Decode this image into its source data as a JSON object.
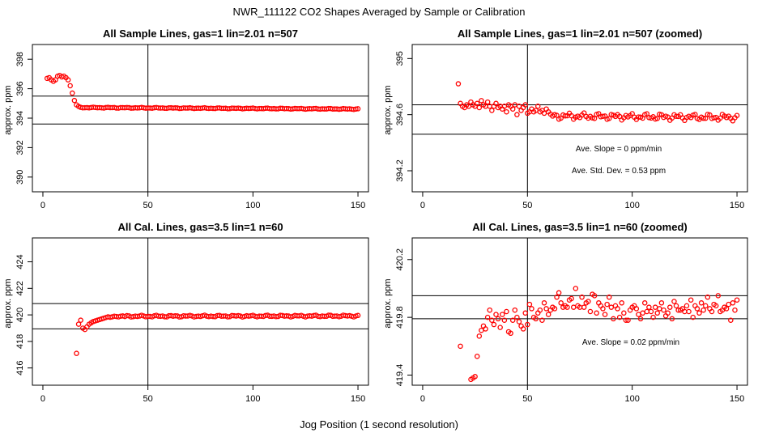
{
  "figure": {
    "title": "NWR_111122  CO2 Shapes Averaged by Sample or Calibration",
    "xlabel": "Jog Position (1 second resolution)"
  },
  "chart_data": [
    {
      "type": "scatter",
      "title": "All Sample Lines, gas=1 lin=2.01 n=507",
      "xlabel": "",
      "ylabel": "approx. ppm",
      "xlim": [
        -5,
        155
      ],
      "ylim": [
        389,
        399
      ],
      "x_ticks": [
        0,
        50,
        100,
        150
      ],
      "y_ticks": [
        390,
        392,
        394,
        396,
        398
      ],
      "vline_x": 50,
      "hlines": [
        395.5,
        393.6
      ],
      "series": [
        {
          "color": "#ff0000",
          "points": [
            [
              2,
              396.7
            ],
            [
              3,
              396.75
            ],
            [
              4,
              396.6
            ],
            [
              5,
              396.5
            ],
            [
              6,
              396.6
            ],
            [
              7,
              396.85
            ],
            [
              8,
              396.9
            ],
            [
              9,
              396.8
            ],
            [
              10,
              396.85
            ],
            [
              11,
              396.75
            ],
            [
              12,
              396.6
            ],
            [
              13,
              396.2
            ],
            [
              14,
              395.7
            ],
            [
              15,
              395.2
            ],
            [
              16,
              394.9
            ],
            [
              17,
              394.8
            ]
          ],
          "tail": {
            "from": 18,
            "to": 150,
            "base": 394.72,
            "end": 394.62,
            "amp": 0.03
          }
        }
      ],
      "annotations": []
    },
    {
      "type": "scatter",
      "title": "All Sample Lines, gas=1 lin=2.01 n=507 (zoomed)",
      "xlabel": "",
      "ylabel": "approx. ppm",
      "xlim": [
        -5,
        155
      ],
      "ylim": [
        394.05,
        395.1
      ],
      "x_ticks": [
        0,
        50,
        100,
        150
      ],
      "y_ticks": [
        394.2,
        394.6,
        395.0
      ],
      "vline_x": 50,
      "hlines": [
        394.67,
        394.46
      ],
      "series": [
        {
          "color": "#ff0000",
          "points": [
            [
              17,
              394.82
            ],
            [
              18,
              394.68
            ],
            [
              19,
              394.66
            ],
            [
              20,
              394.65
            ],
            [
              21,
              394.67
            ],
            [
              22,
              394.66
            ],
            [
              23,
              394.69
            ],
            [
              24,
              394.67
            ],
            [
              25,
              394.66
            ],
            [
              26,
              394.68
            ],
            [
              27,
              394.65
            ],
            [
              28,
              394.7
            ],
            [
              29,
              394.67
            ],
            [
              30,
              394.66
            ],
            [
              31,
              394.69
            ],
            [
              32,
              394.66
            ],
            [
              33,
              394.63
            ],
            [
              34,
              394.66
            ],
            [
              35,
              394.68
            ],
            [
              36,
              394.65
            ],
            [
              37,
              394.66
            ],
            [
              38,
              394.64
            ],
            [
              39,
              394.66
            ],
            [
              40,
              394.62
            ],
            [
              41,
              394.67
            ],
            [
              42,
              394.66
            ],
            [
              43,
              394.64
            ],
            [
              44,
              394.67
            ],
            [
              45,
              394.6
            ],
            [
              46,
              394.66
            ],
            [
              47,
              394.63
            ],
            [
              48,
              394.65
            ],
            [
              49,
              394.67
            ],
            [
              50,
              394.61
            ],
            [
              51,
              394.62
            ],
            [
              52,
              394.64
            ],
            [
              53,
              394.62
            ],
            [
              54,
              394.63
            ],
            [
              55,
              394.66
            ],
            [
              56,
              394.62
            ],
            [
              57,
              394.63
            ],
            [
              58,
              394.61
            ],
            [
              59,
              394.64
            ],
            [
              60,
              394.62
            ]
          ],
          "tail": {
            "from": 61,
            "to": 150,
            "base": 394.59,
            "end": 394.58,
            "amp": 0.025
          }
        }
      ],
      "annotations": [
        "Ave. Slope =  0  ppm/min",
        "Ave. Std. Dev. =  0.53  ppm"
      ]
    },
    {
      "type": "scatter",
      "title": "All Cal. Lines, gas=3.5 lin=1 n=60",
      "xlabel": "",
      "ylabel": "approx. ppm",
      "xlim": [
        -5,
        155
      ],
      "ylim": [
        414.7,
        425.8
      ],
      "x_ticks": [
        0,
        50,
        100,
        150
      ],
      "y_ticks": [
        416,
        418,
        420,
        422,
        424
      ],
      "vline_x": 50,
      "hlines": [
        420.85,
        418.95
      ],
      "series": [
        {
          "color": "#ff0000",
          "points": [
            [
              16,
              417.1
            ],
            [
              17,
              419.3
            ],
            [
              18,
              419.6
            ],
            [
              19,
              419.0
            ],
            [
              20,
              418.9
            ],
            [
              21,
              419.1
            ],
            [
              22,
              419.3
            ],
            [
              23,
              419.4
            ],
            [
              24,
              419.5
            ],
            [
              25,
              419.55
            ],
            [
              26,
              419.6
            ],
            [
              27,
              419.65
            ],
            [
              28,
              419.7
            ],
            [
              29,
              419.75
            ],
            [
              30,
              419.8
            ],
            [
              31,
              419.85
            ],
            [
              32,
              419.82
            ],
            [
              33,
              419.85
            ],
            [
              34,
              419.9
            ],
            [
              35,
              419.88
            ],
            [
              36,
              419.85
            ],
            [
              37,
              419.9
            ],
            [
              38,
              419.92
            ],
            [
              39,
              419.88
            ]
          ],
          "tail": {
            "from": 40,
            "to": 150,
            "base": 419.9,
            "end": 419.92,
            "amp": 0.07
          }
        }
      ],
      "annotations": []
    },
    {
      "type": "scatter",
      "title": "All Cal. Lines, gas=3.5 lin=1 n=60 (zoomed)",
      "xlabel": "",
      "ylabel": "approx. ppm",
      "xlim": [
        -5,
        155
      ],
      "ylim": [
        419.33,
        420.35
      ],
      "x_ticks": [
        0,
        50,
        100,
        150
      ],
      "y_ticks": [
        419.4,
        419.8,
        420.2
      ],
      "vline_x": 50,
      "hlines": [
        419.95,
        419.79
      ],
      "series": [
        {
          "color": "#ff0000",
          "points": [
            [
              18,
              419.6
            ],
            [
              23,
              419.37
            ],
            [
              24,
              419.38
            ],
            [
              25,
              419.39
            ],
            [
              26,
              419.53
            ],
            [
              27,
              419.67
            ],
            [
              28,
              419.71
            ],
            [
              29,
              419.74
            ],
            [
              30,
              419.72
            ],
            [
              31,
              419.8
            ],
            [
              32,
              419.85
            ],
            [
              33,
              419.78
            ],
            [
              34,
              419.75
            ],
            [
              35,
              419.82
            ],
            [
              36,
              419.79
            ],
            [
              37,
              419.73
            ],
            [
              38,
              419.82
            ],
            [
              39,
              419.78
            ],
            [
              40,
              419.84
            ],
            [
              41,
              419.7
            ],
            [
              42,
              419.69
            ],
            [
              43,
              419.78
            ],
            [
              44,
              419.85
            ],
            [
              45,
              419.8
            ],
            [
              46,
              419.77
            ],
            [
              47,
              419.74
            ],
            [
              48,
              419.72
            ],
            [
              49,
              419.83
            ],
            [
              50,
              419.75
            ],
            [
              51,
              419.89
            ],
            [
              52,
              419.86
            ],
            [
              53,
              419.8
            ],
            [
              54,
              419.79
            ],
            [
              55,
              419.83
            ],
            [
              56,
              419.85
            ],
            [
              57,
              419.78
            ],
            [
              58,
              419.9
            ],
            [
              59,
              419.86
            ],
            [
              60,
              419.82
            ],
            [
              61,
              419.85
            ],
            [
              62,
              419.87
            ],
            [
              63,
              419.86
            ],
            [
              64,
              419.94
            ],
            [
              65,
              419.97
            ],
            [
              66,
              419.9
            ],
            [
              67,
              419.87
            ],
            [
              68,
              419.88
            ],
            [
              69,
              419.87
            ],
            [
              70,
              419.92
            ],
            [
              71,
              419.93
            ],
            [
              72,
              419.87
            ],
            [
              73,
              420.0
            ],
            [
              74,
              419.88
            ],
            [
              75,
              419.87
            ],
            [
              76,
              419.94
            ],
            [
              77,
              419.87
            ],
            [
              78,
              419.9
            ],
            [
              79,
              419.91
            ],
            [
              80,
              419.84
            ],
            [
              81,
              419.96
            ],
            [
              82,
              419.95
            ],
            [
              83,
              419.83
            ],
            [
              84,
              419.9
            ],
            [
              85,
              419.88
            ],
            [
              86,
              419.86
            ],
            [
              87,
              419.82
            ],
            [
              88,
              419.89
            ],
            [
              89,
              419.94
            ],
            [
              90,
              419.87
            ],
            [
              91,
              419.79
            ],
            [
              92,
              419.88
            ],
            [
              93,
              419.86
            ],
            [
              94,
              419.8
            ],
            [
              95,
              419.9
            ],
            [
              96,
              419.83
            ],
            [
              97,
              419.78
            ],
            [
              98,
              419.78
            ],
            [
              99,
              419.85
            ],
            [
              100,
              419.87
            ],
            [
              101,
              419.88
            ],
            [
              102,
              419.86
            ],
            [
              103,
              419.82
            ],
            [
              104,
              419.79
            ],
            [
              105,
              419.83
            ],
            [
              106,
              419.9
            ],
            [
              107,
              419.84
            ],
            [
              108,
              419.87
            ],
            [
              109,
              419.84
            ],
            [
              110,
              419.8
            ],
            [
              111,
              419.87
            ],
            [
              112,
              419.83
            ],
            [
              113,
              419.86
            ],
            [
              114,
              419.9
            ],
            [
              115,
              419.85
            ],
            [
              116,
              419.81
            ],
            [
              117,
              419.83
            ],
            [
              118,
              419.87
            ],
            [
              119,
              419.79
            ],
            [
              120,
              419.91
            ],
            [
              121,
              419.88
            ],
            [
              122,
              419.85
            ],
            [
              123,
              419.85
            ],
            [
              124,
              419.86
            ],
            [
              125,
              419.84
            ],
            [
              126,
              419.88
            ],
            [
              127,
              419.84
            ],
            [
              128,
              419.92
            ],
            [
              129,
              419.8
            ],
            [
              130,
              419.88
            ],
            [
              131,
              419.86
            ],
            [
              132,
              419.83
            ],
            [
              133,
              419.9
            ],
            [
              134,
              419.85
            ],
            [
              135,
              419.88
            ],
            [
              136,
              419.94
            ],
            [
              137,
              419.86
            ],
            [
              138,
              419.84
            ],
            [
              139,
              419.89
            ],
            [
              140,
              419.88
            ],
            [
              141,
              419.95
            ],
            [
              142,
              419.84
            ],
            [
              143,
              419.85
            ],
            [
              144,
              419.87
            ],
            [
              145,
              419.86
            ],
            [
              146,
              419.89
            ],
            [
              147,
              419.78
            ],
            [
              148,
              419.9
            ],
            [
              149,
              419.85
            ],
            [
              150,
              419.92
            ]
          ],
          "tail": null
        }
      ],
      "annotations": [
        "Ave. Slope =  0.02  ppm/min"
      ]
    }
  ]
}
